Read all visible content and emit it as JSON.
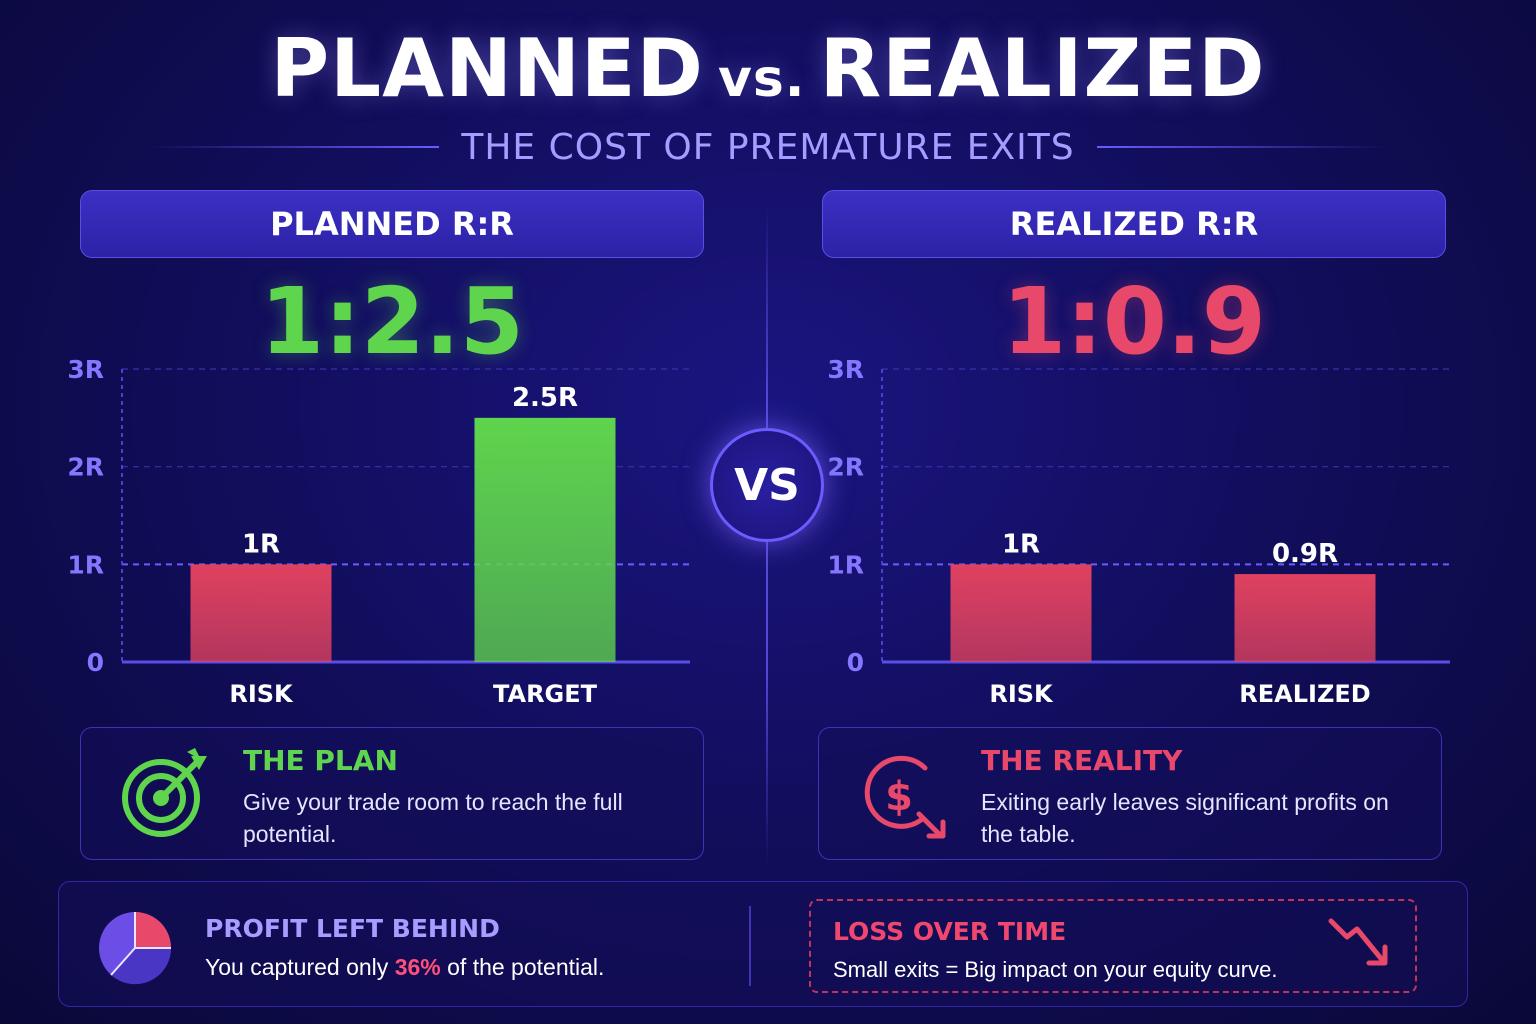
{
  "header": {
    "title_left": "PLANNED",
    "title_vs": "vs.",
    "title_right": "REALIZED",
    "subtitle": "THE COST OF PREMATURE EXITS"
  },
  "vs_label": "VS",
  "chart_data": [
    {
      "type": "bar",
      "title": "PLANNED R:R",
      "ratio": "1:2.5",
      "categories": [
        "RISK",
        "TARGET"
      ],
      "values": [
        1,
        2.5
      ],
      "data_labels": [
        "1R",
        "2.5R"
      ],
      "bar_colors": [
        "#e0415f",
        "#5fd44d"
      ],
      "yticks": [
        "0",
        "1R",
        "2R",
        "3R"
      ],
      "ylim": [
        0,
        3
      ],
      "grid": true
    },
    {
      "type": "bar",
      "title": "REALIZED R:R",
      "ratio": "1:0.9",
      "categories": [
        "RISK",
        "REALIZED"
      ],
      "values": [
        1,
        0.9
      ],
      "data_labels": [
        "1R",
        "0.9R"
      ],
      "bar_colors": [
        "#e0415f",
        "#e0415f"
      ],
      "yticks": [
        "0",
        "1R",
        "2R",
        "3R"
      ],
      "ylim": [
        0,
        3
      ],
      "grid": true
    }
  ],
  "plan_box": {
    "heading": "THE PLAN",
    "text": "Give your trade room to reach the full potential.",
    "icon": "target-icon",
    "color": "#5fd44d"
  },
  "reality_box": {
    "heading": "THE REALITY",
    "text": "Exiting early leaves significant profits on the table.",
    "icon": "dollar-down-icon",
    "color": "#e8486a"
  },
  "profit": {
    "heading": "PROFIT LEFT BEHIND",
    "text_before": "You captured only ",
    "percent": "36%",
    "text_after": " of the potential.",
    "icon": "pie-chart-icon"
  },
  "loss": {
    "heading": "LOSS OVER TIME",
    "text": "Small exits = Big impact on your equity curve.",
    "icon": "trend-down-icon"
  }
}
